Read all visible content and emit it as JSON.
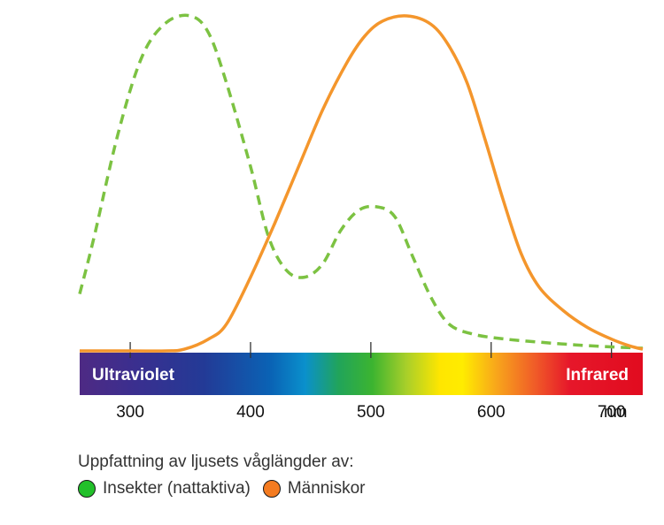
{
  "chart_data": {
    "type": "line",
    "xunit": "nm",
    "xlim": [
      258,
      726
    ],
    "ylim": [
      0,
      1
    ],
    "grid": false,
    "ticks": [
      {
        "value": 300,
        "label": "300"
      },
      {
        "value": 400,
        "label": "400"
      },
      {
        "value": 500,
        "label": "500"
      },
      {
        "value": 600,
        "label": "600"
      },
      {
        "value": 700,
        "label": "700"
      }
    ],
    "spectrum_labels": {
      "left": "Ultraviolet",
      "right": "Infrared"
    },
    "series": [
      {
        "name": "Insekter (nattaktiva)",
        "color": "#7cc242",
        "style": "dashed",
        "points": [
          [
            258,
            0.17
          ],
          [
            270,
            0.34
          ],
          [
            290,
            0.65
          ],
          [
            310,
            0.88
          ],
          [
            330,
            0.98
          ],
          [
            350,
            1.0
          ],
          [
            365,
            0.95
          ],
          [
            380,
            0.8
          ],
          [
            400,
            0.55
          ],
          [
            415,
            0.34
          ],
          [
            430,
            0.24
          ],
          [
            445,
            0.22
          ],
          [
            460,
            0.26
          ],
          [
            475,
            0.36
          ],
          [
            490,
            0.42
          ],
          [
            505,
            0.43
          ],
          [
            520,
            0.4
          ],
          [
            535,
            0.28
          ],
          [
            550,
            0.16
          ],
          [
            565,
            0.08
          ],
          [
            585,
            0.05
          ],
          [
            610,
            0.036
          ],
          [
            640,
            0.026
          ],
          [
            670,
            0.018
          ],
          [
            700,
            0.012
          ],
          [
            726,
            0.008
          ]
        ]
      },
      {
        "name": "Människor",
        "color": "#f4962c",
        "style": "solid",
        "points": [
          [
            258,
            0.0
          ],
          [
            300,
            0.0
          ],
          [
            330,
            0.0
          ],
          [
            345,
            0.005
          ],
          [
            365,
            0.035
          ],
          [
            380,
            0.08
          ],
          [
            400,
            0.22
          ],
          [
            420,
            0.38
          ],
          [
            440,
            0.55
          ],
          [
            460,
            0.72
          ],
          [
            480,
            0.86
          ],
          [
            495,
            0.94
          ],
          [
            510,
            0.985
          ],
          [
            530,
            1.0
          ],
          [
            550,
            0.975
          ],
          [
            565,
            0.91
          ],
          [
            580,
            0.8
          ],
          [
            595,
            0.63
          ],
          [
            610,
            0.45
          ],
          [
            625,
            0.29
          ],
          [
            640,
            0.19
          ],
          [
            660,
            0.12
          ],
          [
            680,
            0.07
          ],
          [
            700,
            0.035
          ],
          [
            715,
            0.015
          ],
          [
            726,
            0.005
          ]
        ]
      }
    ],
    "legend": {
      "title": "Uppfattning av ljusets våglängder av:",
      "placement": "bottom-left",
      "items": [
        {
          "label": "Insekter (nattaktiva)",
          "color": "#22c02a"
        },
        {
          "label": "Människor",
          "color": "#f47b20"
        }
      ]
    }
  }
}
